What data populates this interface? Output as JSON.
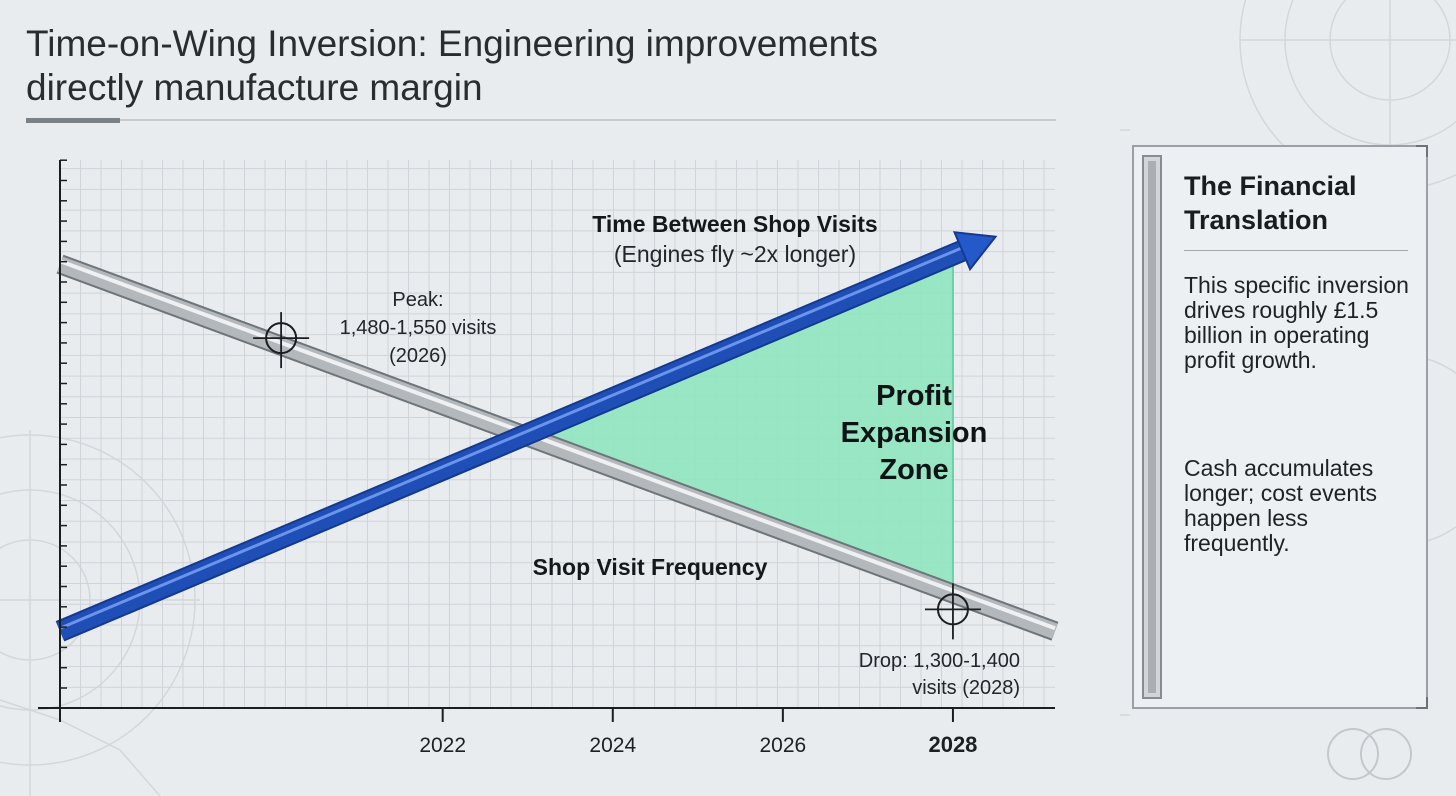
{
  "page": {
    "title_line1": "Time-on-Wing Inversion: Engineering improvements",
    "title_line2": "directly manufacture margin"
  },
  "chart_data": {
    "type": "line",
    "x_tick_labels": [
      "2022",
      "2024",
      "2026",
      "2028"
    ],
    "x_ticks": [
      2022,
      2024,
      2026,
      2028
    ],
    "xlim": [
      2017.5,
      2029.2
    ],
    "x_highlight": "2028",
    "ylim": [
      0,
      100
    ],
    "series": [
      {
        "name": "Time Between Shop Visits",
        "subtitle": "(Engines fly ~2x longer)",
        "x": [
          2017.5,
          2028.5
        ],
        "y": [
          14,
          86
        ],
        "color": "#1f4fb6"
      },
      {
        "name": "Shop Visit Frequency",
        "x": [
          2017.5,
          2029.2
        ],
        "y": [
          81,
          14
        ],
        "color": "#b3b8bc"
      }
    ],
    "shaded_region": {
      "label_lines": [
        "Profit",
        "Expansion",
        "Zone"
      ],
      "color": "#8fe5bf"
    },
    "annotations": {
      "peak": {
        "lines": [
          "Peak:",
          "1,480-1,550 visits",
          "(2026)"
        ],
        "x": 2020.1,
        "y": 67.5
      },
      "drop": {
        "lines": [
          "Drop: 1,300-1,400",
          "visits (2028)"
        ],
        "x": 2028,
        "y": 18
      }
    }
  },
  "panel": {
    "title": "The Financial Translation",
    "paragraph1": "This specific inversion drives roughly £1.5 billion in operating profit growth.",
    "paragraph2": "Cash accumulates longer; cost events happen less frequently."
  }
}
